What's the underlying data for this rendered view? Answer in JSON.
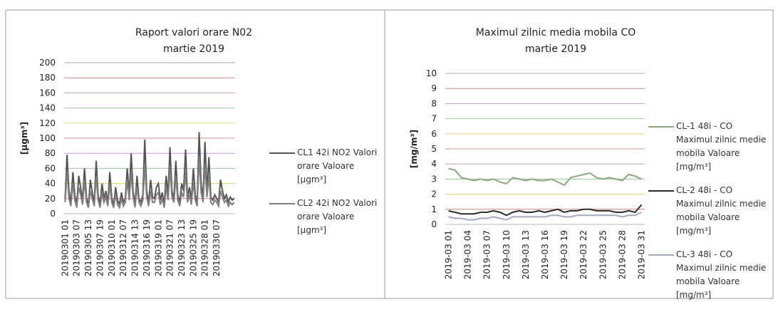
{
  "chart_data": [
    {
      "type": "line",
      "title": "Raport valori orare N02",
      "subtitle": "martie 2019",
      "y_label": "[µgm³]",
      "categories": [
        "20190301 01",
        null,
        null,
        null,
        null,
        null,
        "20190303 07",
        null,
        null,
        null,
        null,
        null,
        "20190305 13",
        null,
        null,
        null,
        null,
        null,
        "20190307 19",
        null,
        null,
        null,
        null,
        null,
        "20190310 01",
        null,
        null,
        null,
        null,
        null,
        "20190312 07",
        null,
        null,
        null,
        null,
        null,
        "20190314 13",
        null,
        null,
        null,
        null,
        null,
        "20190316 19",
        null,
        null,
        null,
        null,
        null,
        "20190319 01",
        null,
        null,
        null,
        null,
        null,
        "20190321 07",
        null,
        null,
        null,
        null,
        null,
        "20190323 13",
        null,
        null,
        null,
        null,
        null,
        "20190325 19",
        null,
        null,
        null,
        null,
        null,
        "20190328 01",
        null,
        null,
        null,
        null,
        null,
        "20190330 07",
        null,
        null,
        null,
        null,
        null,
        null,
        null,
        null,
        null
      ],
      "series": [
        {
          "name": "CL1 42i  NO2 Valori orare Valoare [µgm³]",
          "color": "#555555",
          "values": [
            20,
            78,
            30,
            15,
            55,
            25,
            12,
            50,
            35,
            18,
            60,
            22,
            10,
            45,
            28,
            15,
            70,
            25,
            12,
            40,
            20,
            30,
            15,
            55,
            22,
            10,
            35,
            18,
            12,
            28,
            15,
            20,
            60,
            25,
            80,
            30,
            12,
            50,
            20,
            15,
            25,
            98,
            30,
            15,
            45,
            22,
            20,
            35,
            40,
            18,
            28,
            12,
            50,
            25,
            88,
            30,
            20,
            70,
            25,
            15,
            40,
            30,
            85,
            20,
            35,
            18,
            60,
            25,
            15,
            108,
            40,
            20,
            95,
            30,
            75,
            22,
            18,
            25,
            20,
            15,
            45,
            30,
            20,
            25,
            15,
            22,
            18,
            20
          ]
        },
        {
          "name": "CL2 42i  NO2 Valori orare Valoare [µgm³]",
          "color": "#808080",
          "values": [
            15,
            55,
            20,
            10,
            40,
            18,
            8,
            35,
            25,
            12,
            45,
            15,
            8,
            30,
            20,
            10,
            50,
            18,
            8,
            28,
            15,
            22,
            10,
            40,
            15,
            8,
            25,
            12,
            8,
            20,
            10,
            15,
            45,
            18,
            55,
            22,
            8,
            35,
            15,
            10,
            18,
            65,
            22,
            10,
            30,
            15,
            15,
            25,
            28,
            12,
            20,
            8,
            35,
            18,
            60,
            22,
            15,
            50,
            18,
            10,
            28,
            22,
            55,
            15,
            25,
            12,
            42,
            18,
            10,
            75,
            28,
            15,
            65,
            22,
            50,
            15,
            12,
            18,
            15,
            10,
            30,
            22,
            15,
            18,
            10,
            15,
            12,
            15
          ]
        }
      ],
      "ylim": [
        0,
        200
      ],
      "yticks": [
        0,
        20,
        40,
        60,
        80,
        100,
        120,
        140,
        160,
        180,
        200
      ],
      "grid": true
    },
    {
      "type": "line",
      "title": "Maximul zilnic media mobila CO",
      "subtitle": "martie 2019",
      "y_label": "[mg/m³]",
      "categories": [
        "2019-03 01",
        null,
        null,
        "2019-03 04",
        null,
        null,
        "2019-03 07",
        null,
        null,
        "2019-03 10",
        null,
        null,
        "2019-03 13",
        null,
        null,
        "2019-03 16",
        null,
        null,
        "2019-03 19",
        null,
        null,
        "2019-03 22",
        null,
        null,
        "2019-03 25",
        null,
        null,
        "2019-03 28",
        null,
        null,
        "2019-03 31"
      ],
      "series": [
        {
          "name": "CL-1 48i - CO Maximul zilnic medie mobila Valoare [mg/m³]",
          "color": "#8aa880",
          "values": [
            3.7,
            3.6,
            3.1,
            3.0,
            2.9,
            3.0,
            2.9,
            3.0,
            2.8,
            2.7,
            3.1,
            3.0,
            2.9,
            3.0,
            2.9,
            2.9,
            3.0,
            2.8,
            2.6,
            3.1,
            3.2,
            3.3,
            3.4,
            3.1,
            3.0,
            3.1,
            3.0,
            2.9,
            3.3,
            3.2,
            3.0
          ]
        },
        {
          "name": "CL-2 48i - CO Maximul zilnic medie mobila Valoare [mg/m³]",
          "color": "#2a2a2a",
          "values": [
            0.9,
            0.8,
            0.7,
            0.7,
            0.7,
            0.8,
            0.8,
            0.9,
            0.8,
            0.6,
            0.8,
            0.9,
            0.8,
            0.8,
            0.9,
            0.8,
            0.9,
            1.0,
            0.8,
            0.9,
            0.9,
            1.0,
            1.0,
            0.9,
            0.9,
            0.9,
            0.8,
            0.8,
            0.9,
            0.8,
            1.3
          ]
        },
        {
          "name": "CL-3 48i - CO Maximul zilnic medie mobila Valoare [mg/m³]",
          "color": "#a4a8c4",
          "values": [
            0.5,
            0.4,
            0.4,
            0.3,
            0.3,
            0.4,
            0.4,
            0.5,
            0.4,
            0.3,
            0.5,
            0.5,
            0.5,
            0.5,
            0.5,
            0.5,
            0.6,
            0.6,
            0.5,
            0.5,
            0.6,
            0.6,
            0.6,
            0.6,
            0.6,
            0.6,
            0.6,
            0.5,
            0.6,
            0.6,
            0.8
          ]
        }
      ],
      "ylim": [
        0,
        10
      ],
      "yticks": [
        0,
        1,
        2,
        3,
        4,
        5,
        6,
        7,
        8,
        9,
        10
      ],
      "grid": true
    }
  ]
}
